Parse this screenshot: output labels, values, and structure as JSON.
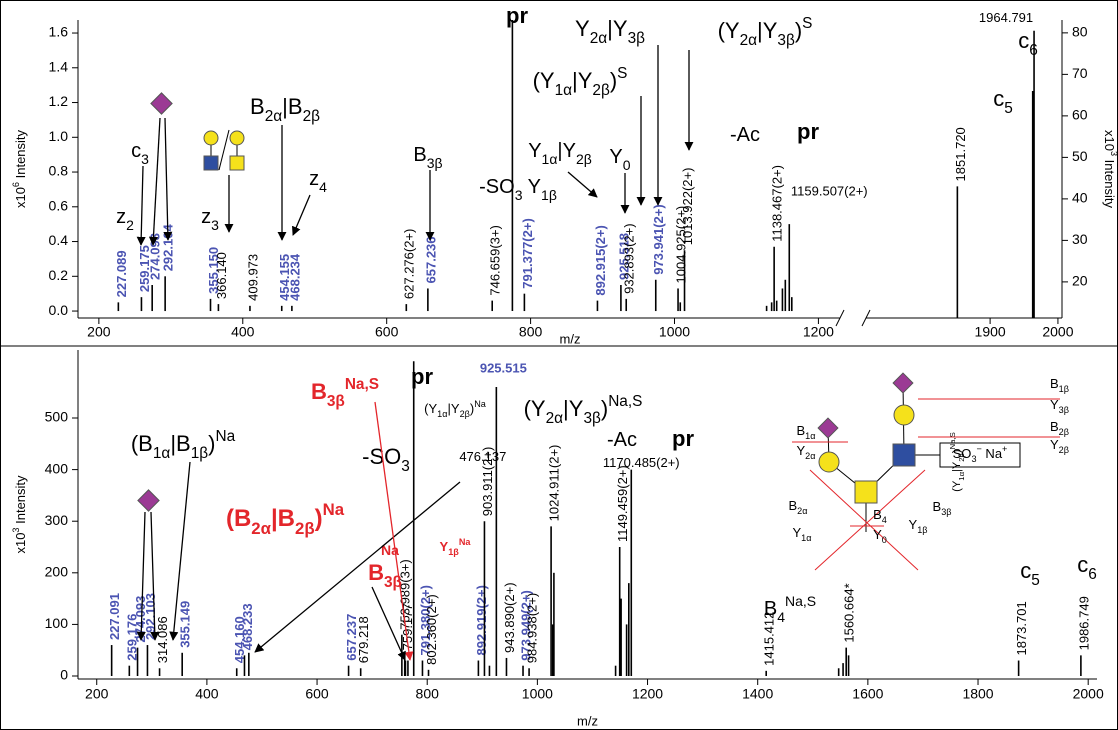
{
  "chart_data": [
    {
      "type": "bar",
      "xlabel": "m/z",
      "ylabel": [
        {
          "t": "x10"
        },
        {
          "sup": "6"
        },
        {
          "t": " Intensity"
        }
      ],
      "y2label": [
        {
          "t": "x10"
        },
        {
          "sup": "3"
        },
        {
          "t": " Intensity"
        }
      ],
      "xlim": [
        171,
        1230
      ],
      "xticks": [
        200,
        400,
        600,
        800,
        1000,
        1200
      ],
      "x2lim": [
        1717,
        2006
      ],
      "x2ticks": [
        1900,
        2000
      ],
      "ylim": [
        -0.04,
        1.675
      ],
      "yticks": [
        {
          "value": 0,
          "label": "0.0"
        },
        {
          "value": 0.2,
          "label": "0.2"
        },
        {
          "value": 0.4,
          "label": "0.4"
        },
        {
          "value": 0.6,
          "label": "0.6"
        },
        {
          "value": 0.8,
          "label": "0.8"
        },
        {
          "value": 1.0,
          "label": "1.0"
        },
        {
          "value": 1.2,
          "label": "1.2"
        },
        {
          "value": 1.4,
          "label": "1.4"
        },
        {
          "value": 1.6,
          "label": "1.6"
        }
      ],
      "y2lim": [
        11.3,
        83.1
      ],
      "y2ticks": [
        20,
        30,
        40,
        50,
        60,
        70,
        80
      ],
      "series": [
        {
          "color": "#000000",
          "label_color": "#4b54b2",
          "label_bold": true,
          "label_orientation": "vertical",
          "x": [
            227.089,
            259.175,
            274.093,
            292.104,
            355.15,
            454.155,
            468.234,
            657.236,
            791.377,
            892.915,
            925.518,
            973.941
          ],
          "values": [
            0.05,
            0.08,
            0.15,
            0.2,
            0.07,
            0.03,
            0.03,
            0.13,
            0.1,
            0.06,
            0.15,
            0.18
          ],
          "x_labels": [
            "227.089",
            "259.175",
            "274.093",
            "292.104",
            "355.150",
            "454.155",
            "468.234",
            "657.236",
            "791.377(2+)",
            "892.915(2+)",
            "925.518",
            "973.941(2+)"
          ]
        },
        {
          "color": "#000000",
          "label_color": "#000000",
          "label_orientation": "vertical",
          "x": [
            366.14,
            409.973,
            627.276,
            746.659,
            932.893,
            1004.925,
            1013.922,
            1138.467
          ],
          "values": [
            0.04,
            0.03,
            0.04,
            0.06,
            0.07,
            0.13,
            0.35,
            0.37
          ],
          "x_labels": [
            "366.140",
            "409.973",
            "627.276(2+)",
            "746.659(3+)",
            "932.893(2+)",
            "1004.925(2+)",
            "1013.922(2+)",
            "1138.467(2+)"
          ]
        },
        {
          "color": "#000000",
          "label_color": "#000000",
          "label_orientation": "horizontal",
          "x": [
            1159.507
          ],
          "values": [
            0.5
          ],
          "x_labels": [
            "1159.507(2+)"
          ]
        },
        {
          "color": "#000000",
          "x": [
            774.7,
            1008,
            1128,
            1135,
            1142,
            1150,
            1154,
            1163
          ],
          "values": [
            1.7,
            0.05,
            0.03,
            0.05,
            0.06,
            0.13,
            0.18,
            0.08
          ]
        },
        {
          "color": "#000000",
          "axis": "y2",
          "label_color": "#000000",
          "label_orientation": "vertical",
          "x": [
            1851.72
          ],
          "values": [
            43
          ],
          "x_labels": [
            "1851.720"
          ]
        },
        {
          "color": "#000000",
          "axis": "y2",
          "label_color": "#000000",
          "label_orientation": "horizontal",
          "x": [
            1964.791
          ],
          "values": [
            80.5
          ],
          "x_labels": [
            "1964.791"
          ]
        },
        {
          "color": "#000000",
          "axis": "y2",
          "x": [
            1962.8
          ],
          "values": [
            66
          ]
        }
      ],
      "annotations": [
        {
          "parts": [
            {
              "t": "pr"
            }
          ],
          "bold": true
        },
        {
          "parts": [
            {
              "t": "Y"
            },
            {
              "sub": "2α"
            },
            {
              "t": "|Y"
            },
            {
              "sub": "3β"
            }
          ]
        },
        {
          "parts": [
            {
              "t": "(Y"
            },
            {
              "sub": "2α"
            },
            {
              "t": "|Y"
            },
            {
              "sub": "3β"
            },
            {
              "t": ")"
            },
            {
              "sup": "S"
            }
          ]
        },
        {
          "parts": [
            {
              "t": "(Y"
            },
            {
              "sub": "1α"
            },
            {
              "t": "|Y"
            },
            {
              "sub": "2β"
            },
            {
              "t": ")"
            },
            {
              "sup": "S"
            }
          ]
        },
        {
          "parts": [
            {
              "t": "B"
            },
            {
              "sub": "2α"
            },
            {
              "t": "|B"
            },
            {
              "sub": "2β"
            }
          ]
        },
        {
          "parts": [
            {
              "t": "-Ac"
            }
          ]
        },
        {
          "parts": [
            {
              "t": "c"
            },
            {
              "sub": "5"
            }
          ]
        },
        {
          "parts": [
            {
              "t": "c"
            },
            {
              "sub": "6"
            }
          ]
        },
        {
          "parts": [
            {
              "t": "Y"
            },
            {
              "sub": "0"
            }
          ]
        },
        {
          "parts": [
            {
              "t": "Y"
            },
            {
              "sub": "1α"
            },
            {
              "t": "|Y"
            },
            {
              "sub": "2β"
            }
          ]
        },
        {
          "parts": [
            {
              "t": "B"
            },
            {
              "sub": "3β"
            }
          ]
        },
        {
          "parts": [
            {
              "t": "c"
            },
            {
              "sub": "3"
            }
          ]
        },
        {
          "parts": [
            {
              "t": "z"
            },
            {
              "sub": "4"
            }
          ]
        },
        {
          "parts": [
            {
              "t": "-SO"
            },
            {
              "sub": "3"
            },
            {
              "t": " Y"
            },
            {
              "sub": "1β"
            }
          ]
        },
        {
          "parts": [
            {
              "t": "z"
            },
            {
              "sub": "2"
            }
          ]
        },
        {
          "parts": [
            {
              "t": "z"
            },
            {
              "sub": "3"
            }
          ]
        },
        {
          "parts": [
            {
              "t": "pr"
            }
          ],
          "bold": true
        }
      ]
    },
    {
      "type": "bar",
      "xlabel": "m/z",
      "ylabel": [
        {
          "t": "x10"
        },
        {
          "sup": "3"
        },
        {
          "t": " Intensity"
        }
      ],
      "xlim": [
        166,
        2016
      ],
      "xticks": [
        200,
        400,
        600,
        800,
        1000,
        1200,
        1400,
        1600,
        1800,
        2000
      ],
      "ylim": [
        -5.8,
        631.8
      ],
      "yticks": [
        0,
        100,
        200,
        300,
        400,
        500
      ],
      "series": [
        {
          "color": "#000000",
          "label_color": "#4b54b2",
          "label_bold": true,
          "label_orientation": "vertical",
          "x": [
            227.091,
            259.176,
            274.093,
            292.103,
            355.149,
            454.16,
            468.233,
            657.237,
            791.38,
            892.919,
            973.949
          ],
          "values": [
            60,
            20,
            55,
            60,
            45,
            15,
            40,
            20,
            30,
            30,
            20
          ],
          "x_labels": [
            "227.091",
            "259.176",
            "274.093",
            "292.103",
            "355.149",
            "454.160",
            "468.233",
            "657.237",
            "791.380(2+)",
            "892.919(2+)",
            "973.949(2+)"
          ]
        },
        {
          "color": "#000000",
          "label_color": "#4b54b2",
          "label_bold": true,
          "label_orientation": "horizontal",
          "x": [
            925.515
          ],
          "values": [
            560
          ],
          "x_labels": [
            "925.515"
          ]
        },
        {
          "color": "#000000",
          "label_color": "#000000",
          "label_orientation": "vertical",
          "x": [
            314.086,
            679.218,
            753.989,
            759.177,
            802.36,
            903.911,
            943.89,
            984.938,
            1024.911,
            1149.459,
            1415.412,
            1560.664,
            1873.701,
            1986.749
          ],
          "values": [
            15,
            15,
            80,
            40,
            12,
            300,
            35,
            15,
            290,
            250,
            10,
            55,
            30,
            40
          ],
          "x_labels": [
            "314.086",
            "679.218",
            "753.989(3+)",
            "759.177",
            "802.360(2+)",
            "903.911(2+)",
            "943.890(2+)",
            "984.938(2+)",
            "1024.911(2+)",
            "1149.459(2+)",
            "1415.412",
            "1560.664*",
            "1873.701",
            "1986.749"
          ]
        },
        {
          "color": "#000000",
          "label_color": "#000000",
          "label_orientation": "horizontal",
          "x": [
            476.137,
            1170.485
          ],
          "values": [
            45,
            400
          ],
          "x_labels": [
            "476.137",
            "1170.485(2+)"
          ]
        },
        {
          "color": "#000000",
          "x": [
            760.5,
            765,
            775.5,
            913,
            1028,
            1030,
            1142,
            1152,
            1162,
            1166,
            1547,
            1555,
            1565
          ],
          "values": [
            30,
            30,
            610,
            20,
            100,
            200,
            20,
            150,
            100,
            180,
            15,
            25,
            40
          ]
        }
      ],
      "annotations": [
        {
          "parts": [
            {
              "t": "pr"
            }
          ],
          "bold": true
        },
        {
          "parts": [
            {
              "t": "B"
            },
            {
              "sub": "3β"
            },
            {
              "sup": "Na,S"
            }
          ],
          "color": "#e3262b",
          "bold": true
        },
        {
          "parts": [
            {
              "t": "(Y"
            },
            {
              "sub": "1α"
            },
            {
              "t": "|Y"
            },
            {
              "sub": "2β"
            },
            {
              "t": ")"
            },
            {
              "sup": "Na"
            }
          ]
        },
        {
          "parts": [
            {
              "t": "(Y"
            },
            {
              "sub": "2α"
            },
            {
              "t": "|Y"
            },
            {
              "sub": "3β"
            },
            {
              "t": ")"
            },
            {
              "sup": "Na,S"
            }
          ]
        },
        {
          "parts": [
            {
              "t": "-Ac"
            }
          ]
        },
        {
          "parts": [
            {
              "t": "pr"
            }
          ],
          "bold": true
        },
        {
          "parts": [
            {
              "t": "(B"
            },
            {
              "sub": "1α"
            },
            {
              "t": "|B"
            },
            {
              "sub": "1β"
            },
            {
              "t": ")"
            },
            {
              "sup": "Na"
            }
          ]
        },
        {
          "parts": [
            {
              "t": "-SO"
            },
            {
              "sub": "3"
            }
          ]
        },
        {
          "parts": [
            {
              "t": "(B"
            },
            {
              "sub": "2α"
            },
            {
              "t": "|B"
            },
            {
              "sub": "2β"
            },
            {
              "t": ")"
            },
            {
              "sup": "Na"
            }
          ],
          "color": "#e3262b",
          "bold": true
        },
        {
          "parts": [
            {
              "t": "Na"
            }
          ],
          "color": "#e3262b",
          "bold": true
        },
        {
          "parts": [
            {
              "t": "B"
            },
            {
              "sub": "3β"
            }
          ],
          "color": "#e3262b",
          "bold": true
        },
        {
          "parts": [
            {
              "t": "Y"
            },
            {
              "sub": "1β"
            },
            {
              "sup": "Na"
            }
          ],
          "color": "#e3262b",
          "bold": true
        },
        {
          "parts": [
            {
              "t": "B"
            },
            {
              "sub": "4"
            },
            {
              "sup": "Na,S"
            }
          ]
        },
        {
          "parts": [
            {
              "t": "c"
            },
            {
              "sub": "5"
            }
          ]
        },
        {
          "parts": [
            {
              "t": "c"
            },
            {
              "sub": "6"
            }
          ]
        },
        {
          "parts": [
            {
              "t": "(Y"
            },
            {
              "sub": "1α"
            },
            {
              "t": "|Y"
            },
            {
              "sub": "2β"
            },
            {
              "t": ")"
            },
            {
              "sup": "Na,S"
            }
          ]
        }
      ],
      "structure_labels": [
        [
          {
            "t": "B"
          },
          {
            "sub": "1β"
          }
        ],
        [
          {
            "t": "Y"
          },
          {
            "sub": "3β"
          }
        ],
        [
          {
            "t": "B"
          },
          {
            "sub": "2β"
          }
        ],
        [
          {
            "t": "Y"
          },
          {
            "sub": "2β"
          }
        ],
        [
          {
            "t": "B"
          },
          {
            "sub": "1α"
          }
        ],
        [
          {
            "t": "Y"
          },
          {
            "sub": "2α"
          }
        ],
        [
          {
            "t": "B"
          },
          {
            "sub": "2α"
          }
        ],
        [
          {
            "t": "Y"
          },
          {
            "sub": "1α"
          }
        ],
        [
          {
            "t": "B"
          },
          {
            "sub": "4"
          }
        ],
        [
          {
            "t": "Y"
          },
          {
            "sub": "0"
          }
        ],
        [
          {
            "t": "B"
          },
          {
            "sub": "3β"
          }
        ],
        [
          {
            "t": "Y"
          },
          {
            "sub": "1β"
          }
        ],
        [
          {
            "t": "SO"
          },
          {
            "sub": "3"
          },
          {
            "sup": "−"
          },
          {
            "t": " Na"
          },
          {
            "sup": "+"
          }
        ]
      ]
    }
  ]
}
